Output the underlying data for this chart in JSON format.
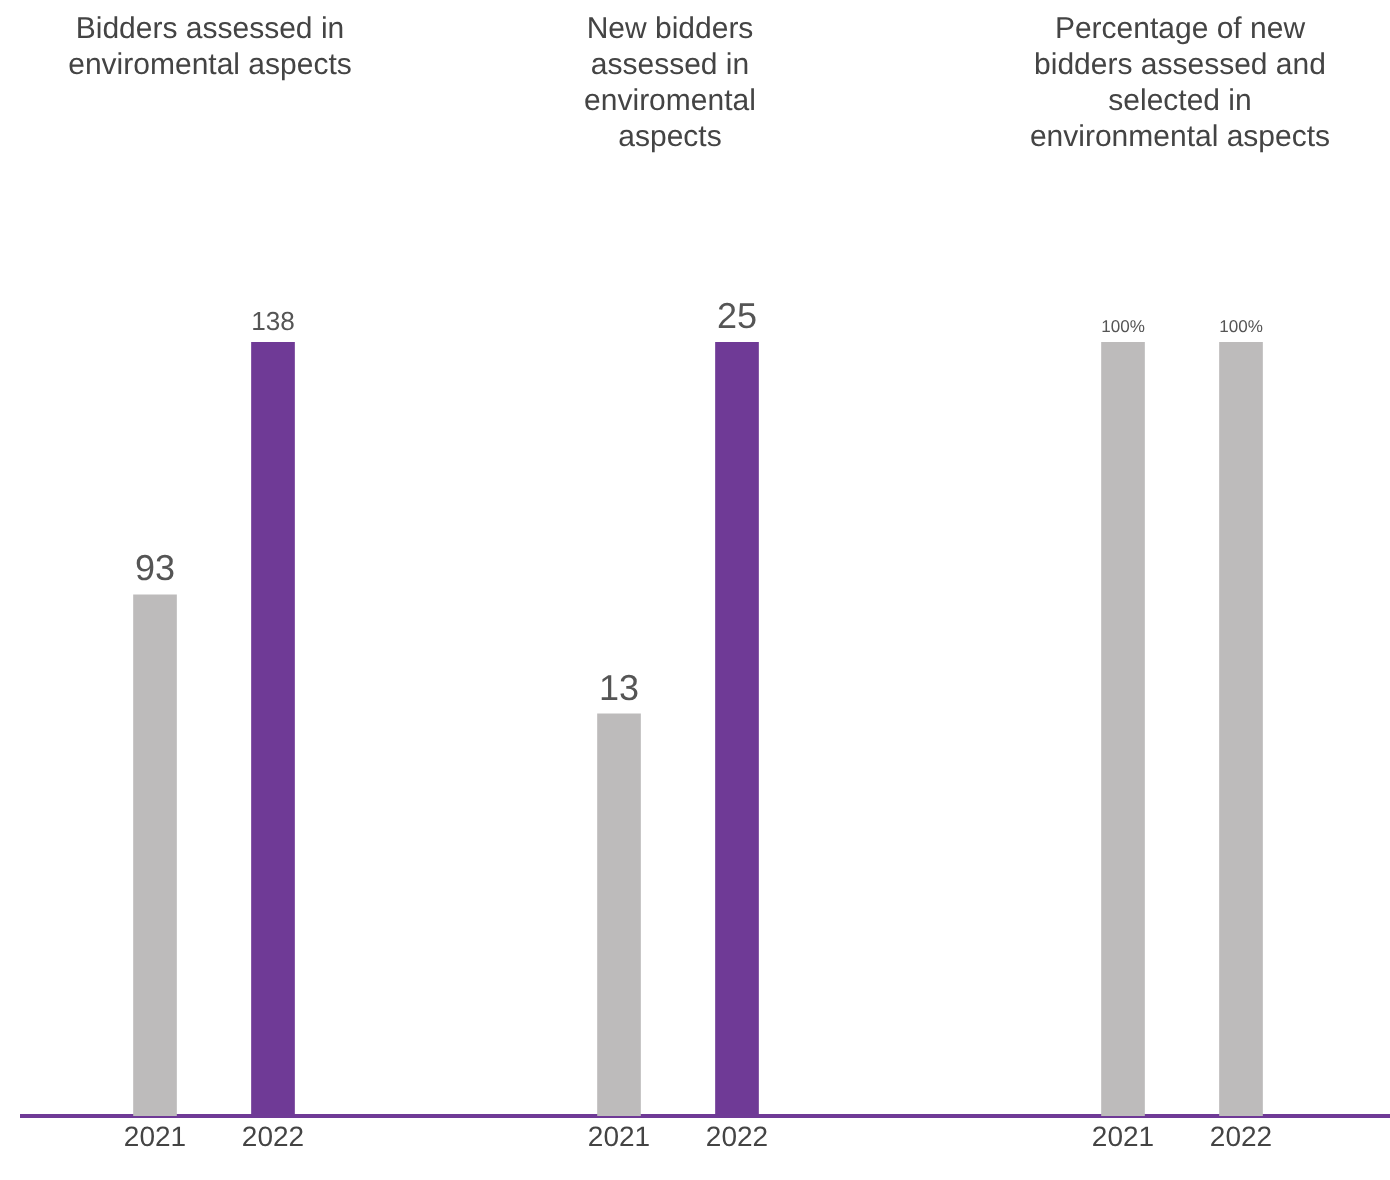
{
  "chart_data": [
    {
      "type": "bar",
      "title": "Bidders assessed in enviromental aspects",
      "categories": [
        "2021",
        "2022"
      ],
      "values": [
        93,
        138
      ],
      "colors": [
        "#bdbbbb",
        "#6f3a96"
      ],
      "data_labels": true
    },
    {
      "type": "bar",
      "title": "New bidders assessed in enviromental aspects",
      "categories": [
        "2021",
        "2022"
      ],
      "values": [
        13,
        25
      ],
      "colors": [
        "#bdbbbb",
        "#6f3a96"
      ],
      "data_labels": true
    },
    {
      "type": "bar",
      "title": "Percentage of new bidders assessed and selected in environmental aspects",
      "categories": [
        "2021",
        "2022"
      ],
      "values": [
        100,
        100
      ],
      "colors": [
        "#bdbbbb",
        "#bdbbbb"
      ],
      "value_labels": [
        "100%",
        "100%"
      ]
    }
  ]
}
